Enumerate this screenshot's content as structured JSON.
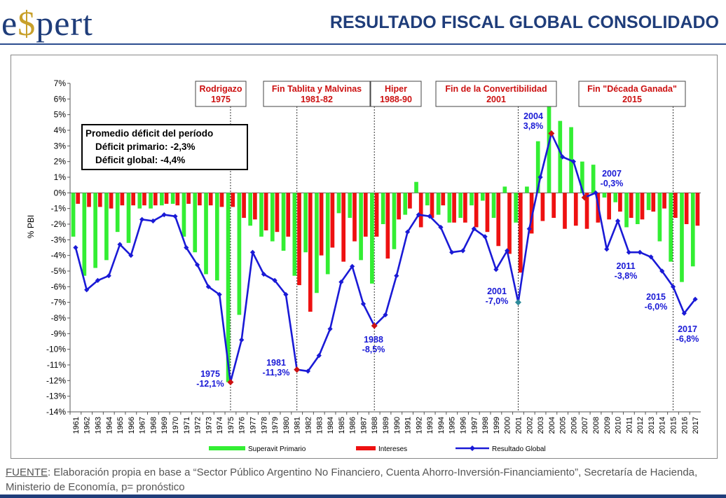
{
  "header": {
    "logo_text_left": "e",
    "logo_text_dollar": "$",
    "logo_text_right": "pert",
    "title": "RESULTADO FISCAL GLOBAL CONSOLIDADO"
  },
  "footer": {
    "source_label": "FUENTE",
    "source_text": ": Elaboración propia en base a “Sector Público Argentino No Financiero, Cuenta Ahorro-Inversión-Financiamiento”,  Secretaría de Hacienda, Ministerio de Economía, p= pronóstico"
  },
  "colors": {
    "primario": "#33ee33",
    "intereses": "#ee1111",
    "global": "#1a1ad6",
    "marker_red": "#cc1111",
    "marker_teal": "#2e8b9a",
    "header_blue": "#1f3d7a"
  },
  "chart_data": {
    "type": "bar",
    "ylabel": "% PBI",
    "ylim": [
      -14,
      7
    ],
    "yticks": [
      "7%",
      "6%",
      "5%",
      "4%",
      "3%",
      "2%",
      "1%",
      "0%",
      "-1%",
      "-2%",
      "-3%",
      "-4%",
      "-5%",
      "-6%",
      "-7%",
      "-8%",
      "-9%",
      "-10%",
      "-11%",
      "-12%",
      "-13%",
      "-14%"
    ],
    "categories": [
      "1961",
      "1962",
      "1963",
      "1964",
      "1965",
      "1966",
      "1967",
      "1968",
      "1969",
      "1970",
      "1971",
      "1972",
      "1973",
      "1974",
      "1975",
      "1976",
      "1977",
      "1978",
      "1979",
      "1980",
      "1981",
      "1982",
      "1983",
      "1984",
      "1985",
      "1986",
      "1987",
      "1988",
      "1989",
      "1990",
      "1991",
      "1992",
      "1993",
      "1994",
      "1995",
      "1996",
      "1997",
      "1998",
      "1999",
      "2000",
      "2001",
      "2002",
      "2003",
      "2004",
      "2005",
      "2006",
      "2007",
      "2008",
      "2009",
      "2010",
      "2011",
      "2012",
      "2013",
      "2014",
      "2015",
      "2016",
      "2017"
    ],
    "series": [
      {
        "name": "Superavit Primario",
        "kind": "bar",
        "values": [
          -2.8,
          -5.3,
          -4.8,
          -4.3,
          -2.5,
          -3.2,
          -1.0,
          -1.0,
          -0.8,
          -0.7,
          -2.8,
          -3.8,
          -5.2,
          -5.6,
          -12.1,
          -7.8,
          -2.1,
          -2.8,
          -3.1,
          -3.7,
          -5.3,
          -3.8,
          -6.4,
          -5.2,
          -1.3,
          -1.6,
          -4.3,
          -5.8,
          -2.0,
          -3.6,
          -1.4,
          0.7,
          -0.8,
          -1.4,
          -1.9,
          -1.6,
          -0.8,
          -0.5,
          -1.6,
          0.4,
          -1.9,
          0.4,
          3.3,
          5.5,
          4.6,
          4.2,
          2.0,
          1.8,
          -0.3,
          -0.6,
          -2.2,
          -2.0,
          -1.1,
          -3.1,
          -4.4,
          -5.7,
          -4.7
        ]
      },
      {
        "name": "Intereses",
        "kind": "bar",
        "values": [
          -0.7,
          -0.9,
          -0.9,
          -1.0,
          -0.8,
          -0.8,
          -0.8,
          -0.8,
          -0.7,
          -0.8,
          -0.7,
          -0.8,
          -0.8,
          -0.9,
          -0.9,
          -1.6,
          -1.7,
          -2.4,
          -2.5,
          -2.8,
          -5.9,
          -7.6,
          -4.0,
          -3.5,
          -4.4,
          -3.1,
          -2.8,
          -2.8,
          -4.2,
          -1.7,
          -1.0,
          -2.2,
          -1.6,
          -0.8,
          -1.9,
          -1.9,
          -2.2,
          -2.5,
          -3.4,
          -3.9,
          -5.1,
          -2.6,
          -1.8,
          -1.6,
          -2.3,
          -2.1,
          -2.3,
          -1.9,
          -1.7,
          -1.2,
          -1.6,
          -1.7,
          -1.2,
          -1.0,
          -1.6,
          -2.0,
          -2.1
        ]
      },
      {
        "name": "Resultado Global",
        "kind": "line",
        "values": [
          -3.5,
          -6.2,
          -5.6,
          -5.3,
          -3.3,
          -4.0,
          -1.7,
          -1.8,
          -1.4,
          -1.5,
          -3.5,
          -4.6,
          -6.0,
          -6.5,
          -12.1,
          -9.4,
          -3.8,
          -5.2,
          -5.6,
          -6.5,
          -11.3,
          -11.4,
          -10.4,
          -8.7,
          -5.7,
          -4.7,
          -7.1,
          -8.5,
          -7.8,
          -5.3,
          -2.5,
          -1.4,
          -1.5,
          -2.2,
          -3.8,
          -3.7,
          -2.3,
          -2.8,
          -4.9,
          -3.7,
          -7.0,
          -2.3,
          1.0,
          3.8,
          2.3,
          2.0,
          -0.3,
          0.0,
          -3.6,
          -1.8,
          -3.8,
          -3.8,
          -4.1,
          -5.0,
          -6.0,
          -7.7,
          -6.8
        ]
      }
    ],
    "events": [
      {
        "line1": "Rodrigazo",
        "line2": "1975",
        "year": "1975"
      },
      {
        "line1": "Fin Tablita y Malvinas",
        "line2": "1981-82",
        "year": "1981"
      },
      {
        "line1": "Hiper",
        "line2": "1988-90",
        "year": "1988"
      },
      {
        "line1": "Fin de la Convertibilidad",
        "line2": "2001",
        "year": "2001"
      },
      {
        "line1": "Fin \"Década Ganada\"",
        "line2": "2015",
        "year": "2015"
      }
    ],
    "summary_box": {
      "title": "Promedio déficit del período",
      "line1": "Déficit primario: -2,3%",
      "line2": "Déficit global:  -4,4%"
    },
    "point_labels": [
      {
        "year": "1975",
        "line1": "1975",
        "line2": "-12,1%"
      },
      {
        "year": "1981",
        "line1": "1981",
        "line2": "-11,3%"
      },
      {
        "year": "1988",
        "line1": "1988",
        "line2": "-8,5%"
      },
      {
        "year": "2001",
        "line1": "2001",
        "line2": "-7,0%"
      },
      {
        "year": "2004",
        "line1": "2004",
        "line2": "3,8%"
      },
      {
        "year": "2007",
        "line1": "2007",
        "line2": "-0,3%"
      },
      {
        "year": "2011",
        "line1": "2011",
        "line2": "-3,8%"
      },
      {
        "year": "2015",
        "line1": "2015",
        "line2": "-6,0%"
      },
      {
        "year": "2017",
        "line1": "2017",
        "line2": "-6,8%"
      }
    ],
    "highlight_points": [
      {
        "year": "1975",
        "color": "red"
      },
      {
        "year": "1981",
        "color": "red"
      },
      {
        "year": "1988",
        "color": "red"
      },
      {
        "year": "2001",
        "color": "teal"
      },
      {
        "year": "2004",
        "color": "red"
      },
      {
        "year": "2007",
        "color": "red"
      }
    ],
    "legend": [
      "Superavit Primario",
      "Intereses",
      "Resultado Global"
    ],
    "legend_position": "bottom",
    "grid": false
  }
}
